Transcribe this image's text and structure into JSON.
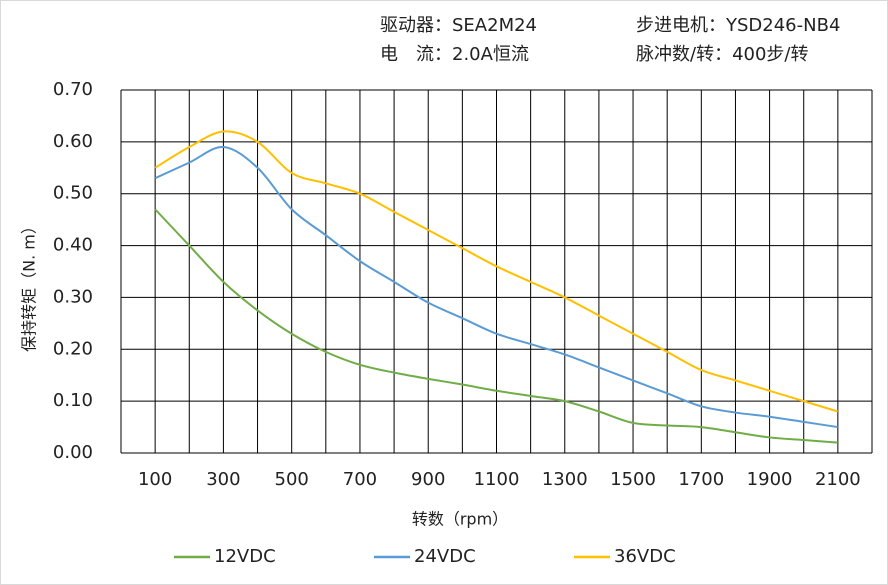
{
  "chart_data": {
    "type": "line",
    "header": [
      "驱动器：SEA2M24",
      "步进电机：YSD246-NB4",
      "电　流：2.0A恒流",
      "脉冲数/转：400步/转"
    ],
    "xlabel": "转数（rpm）",
    "ylabel": "保持转矩（N. m）",
    "x": [
      100,
      200,
      300,
      400,
      500,
      600,
      700,
      800,
      900,
      1000,
      1100,
      1200,
      1300,
      1400,
      1500,
      1600,
      1700,
      1800,
      1900,
      2000,
      2100
    ],
    "series": [
      {
        "name": "12VDC",
        "color": "#70ad47",
        "values": [
          0.47,
          0.4,
          0.33,
          0.275,
          0.23,
          0.195,
          0.17,
          0.155,
          0.143,
          0.132,
          0.12,
          0.11,
          0.1,
          0.08,
          0.058,
          0.053,
          0.05,
          0.04,
          0.03,
          0.025,
          0.02
        ]
      },
      {
        "name": "24VDC",
        "color": "#5b9bd5",
        "values": [
          0.53,
          0.56,
          0.59,
          0.55,
          0.47,
          0.42,
          0.37,
          0.33,
          0.29,
          0.26,
          0.23,
          0.21,
          0.19,
          0.165,
          0.14,
          0.115,
          0.09,
          0.078,
          0.07,
          0.06,
          0.05
        ]
      },
      {
        "name": "36VDC",
        "color": "#ffc000",
        "values": [
          0.55,
          0.59,
          0.62,
          0.6,
          0.54,
          0.52,
          0.5,
          0.465,
          0.43,
          0.395,
          0.36,
          0.33,
          0.3,
          0.265,
          0.23,
          0.195,
          0.16,
          0.14,
          0.12,
          0.1,
          0.08
        ]
      }
    ],
    "xlim": [
      0,
      2200
    ],
    "xticks": [
      100,
      300,
      500,
      700,
      900,
      1100,
      1300,
      1500,
      1700,
      1900,
      2100
    ],
    "xgrid": [
      0,
      100,
      200,
      300,
      400,
      500,
      600,
      700,
      800,
      900,
      1000,
      1100,
      1200,
      1300,
      1400,
      1500,
      1600,
      1700,
      1800,
      1900,
      2000,
      2100,
      2200
    ],
    "ylim": [
      0,
      0.7
    ],
    "yticks": [
      {
        "value": 0,
        "label": "0.00"
      },
      {
        "value": 0.1,
        "label": "0.10"
      },
      {
        "value": 0.2,
        "label": "0.20"
      },
      {
        "value": 0.3,
        "label": "0.30"
      },
      {
        "value": 0.4,
        "label": "0.40"
      },
      {
        "value": 0.5,
        "label": "0.50"
      },
      {
        "value": 0.6,
        "label": "0.60"
      },
      {
        "value": 0.7,
        "label": "0.70"
      }
    ],
    "grid": true,
    "legend": "bottom"
  }
}
